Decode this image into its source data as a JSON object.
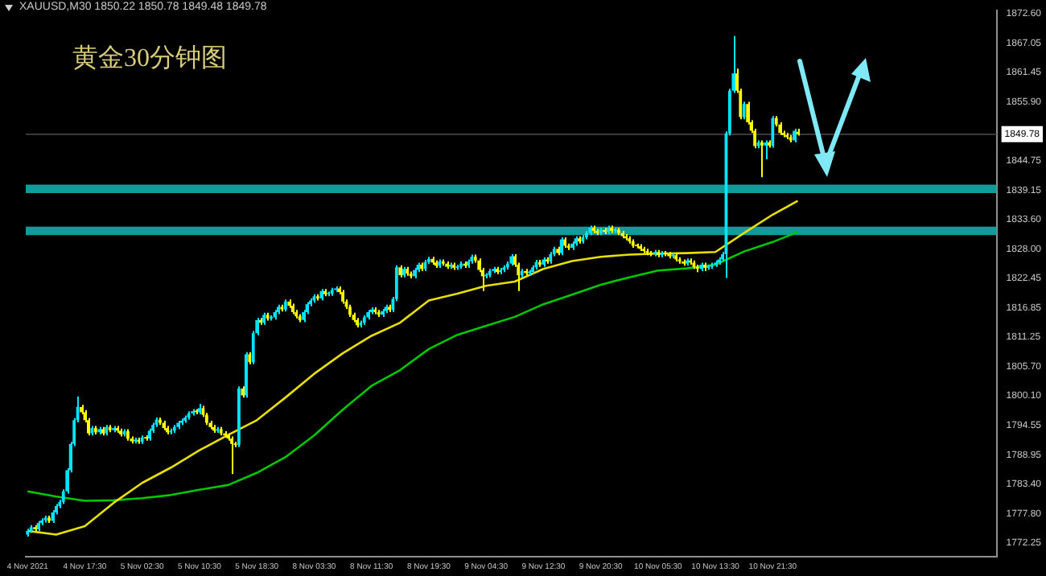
{
  "chart_data": {
    "type": "candlestick",
    "title": "黄金30分钟图",
    "annotations": [
      "XAUUSD,M30 1850.22 1850.78 1849.48 1849.78"
    ],
    "categories": [
      "4 Nov 2021",
      null,
      null,
      null,
      null,
      null,
      null,
      null,
      null,
      null,
      null,
      null,
      null,
      null,
      null,
      null,
      "4 Nov 17:30",
      null,
      null,
      null,
      null,
      null,
      null,
      null,
      null,
      null,
      null,
      null,
      null,
      null,
      null,
      null,
      "5 Nov 02:30",
      null,
      null,
      null,
      null,
      null,
      null,
      null,
      null,
      null,
      null,
      null,
      null,
      null,
      null,
      null,
      "5 Nov 10:30",
      null,
      null,
      null,
      null,
      null,
      null,
      null,
      null,
      null,
      null,
      null,
      null,
      null,
      null,
      null,
      "5 Nov 18:30",
      null,
      null,
      null,
      null,
      null,
      null,
      null,
      null,
      null,
      null,
      null,
      null,
      null,
      null,
      null,
      "8 Nov 03:30",
      null,
      null,
      null,
      null,
      null,
      null,
      null,
      null,
      null,
      null,
      null,
      null,
      null,
      null,
      null,
      "8 Nov 11:30",
      null,
      null,
      null,
      null,
      null,
      null,
      null,
      null,
      null,
      null,
      null,
      null,
      null,
      null,
      null,
      "8 Nov 19:30",
      null,
      null,
      null,
      null,
      null,
      null,
      null,
      null,
      null,
      null,
      null,
      null,
      null,
      null,
      null,
      "9 Nov 04:30",
      null,
      null,
      null,
      null,
      null,
      null,
      null,
      null,
      null,
      null,
      null,
      null,
      null,
      null,
      null,
      "9 Nov 12:30",
      null,
      null,
      null,
      null,
      null,
      null,
      null,
      null,
      null,
      null,
      null,
      null,
      null,
      null,
      null,
      "9 Nov 20:30",
      null,
      null,
      null,
      null,
      null,
      null,
      null,
      null,
      null,
      null,
      null,
      null,
      null,
      null,
      null,
      "10 Nov 05:30",
      null,
      null,
      null,
      null,
      null,
      null,
      null,
      null,
      null,
      null,
      null,
      null,
      null,
      null,
      null,
      "10 Nov 13:30",
      null,
      null,
      null,
      null,
      null,
      null,
      null,
      null,
      null,
      null,
      null,
      null,
      null,
      null,
      null,
      "10 Nov 21:30",
      null,
      null,
      null,
      null,
      null,
      null,
      null,
      null,
      null,
      null,
      null,
      null,
      null,
      null,
      null,
      null,
      null,
      null,
      null,
      null,
      null,
      null,
      null,
      null,
      null,
      null,
      null,
      null,
      null,
      null,
      null,
      null,
      null,
      null,
      null,
      null,
      null,
      null,
      null,
      null,
      null,
      null,
      null,
      null,
      null,
      null,
      null,
      null,
      null,
      null,
      null,
      null,
      null,
      null,
      null,
      null,
      null,
      null,
      null,
      null,
      null,
      null
    ],
    "ohlc": [
      [
        1773.8,
        1774.9,
        1773.4,
        1774.5
      ],
      [
        1774.5,
        1775.6,
        1774.1,
        1775.2
      ],
      [
        1775.2,
        1775.6,
        1774.4,
        1774.8
      ],
      [
        1774.8,
        1776.4,
        1774.4,
        1776.0
      ],
      [
        1776.0,
        1776.9,
        1775.6,
        1776.5
      ],
      [
        1776.5,
        1777.4,
        1776.1,
        1777.0
      ],
      [
        1777.0,
        1777.4,
        1776.0,
        1776.4
      ],
      [
        1776.4,
        1778.4,
        1776.0,
        1778.0
      ],
      [
        1778.0,
        1779.6,
        1777.6,
        1779.2
      ],
      [
        1779.2,
        1780.4,
        1778.8,
        1780.0
      ],
      [
        1780.0,
        1782.4,
        1779.6,
        1782.0
      ],
      [
        1782.0,
        1786.4,
        1781.6,
        1786.0
      ],
      [
        1786.0,
        1791.4,
        1785.6,
        1791.0
      ],
      [
        1791.0,
        1795.9,
        1790.6,
        1795.5
      ],
      [
        1795.5,
        1800.0,
        1795.1,
        1798.0
      ],
      [
        1798.0,
        1798.4,
        1796.6,
        1797.0
      ],
      [
        1797.0,
        1797.4,
        1795.1,
        1795.5
      ],
      [
        1795.5,
        1795.9,
        1792.6,
        1793.0
      ],
      [
        1793.0,
        1794.4,
        1792.6,
        1794.0
      ],
      [
        1794.0,
        1794.4,
        1792.8,
        1793.2
      ],
      [
        1793.2,
        1794.2,
        1792.8,
        1793.8
      ],
      [
        1793.8,
        1794.2,
        1792.6,
        1793.0
      ],
      [
        1793.0,
        1794.6,
        1792.6,
        1794.2
      ],
      [
        1794.2,
        1794.6,
        1793.2,
        1793.6
      ],
      [
        1793.6,
        1794.4,
        1793.2,
        1794.0
      ],
      [
        1794.0,
        1794.4,
        1793.1,
        1793.5
      ],
      [
        1793.5,
        1793.9,
        1792.4,
        1792.8
      ],
      [
        1792.8,
        1793.8,
        1792.4,
        1793.4
      ],
      [
        1793.4,
        1793.8,
        1791.6,
        1792.0
      ],
      [
        1792.0,
        1792.4,
        1791.1,
        1791.5
      ],
      [
        1791.5,
        1792.2,
        1791.1,
        1791.8
      ],
      [
        1791.8,
        1792.2,
        1791.0,
        1791.4
      ],
      [
        1791.4,
        1792.6,
        1791.0,
        1792.2
      ],
      [
        1792.2,
        1792.6,
        1791.6,
        1792.0
      ],
      [
        1792.0,
        1793.9,
        1791.6,
        1793.5
      ],
      [
        1793.5,
        1795.0,
        1793.1,
        1794.6
      ],
      [
        1794.6,
        1796.0,
        1794.2,
        1795.6
      ],
      [
        1795.6,
        1796.0,
        1794.6,
        1795.0
      ],
      [
        1795.0,
        1795.4,
        1793.6,
        1794.0
      ],
      [
        1794.0,
        1794.4,
        1792.8,
        1793.2
      ],
      [
        1793.2,
        1793.9,
        1792.8,
        1793.5
      ],
      [
        1793.5,
        1794.6,
        1793.1,
        1794.2
      ],
      [
        1794.2,
        1795.4,
        1793.8,
        1795.0
      ],
      [
        1795.0,
        1795.8,
        1794.6,
        1795.4
      ],
      [
        1795.4,
        1796.4,
        1795.0,
        1796.0
      ],
      [
        1796.0,
        1797.2,
        1795.6,
        1796.8
      ],
      [
        1796.8,
        1797.6,
        1796.4,
        1797.2
      ],
      [
        1797.2,
        1797.6,
        1796.6,
        1797.0
      ],
      [
        1797.0,
        1798.6,
        1796.6,
        1797.8
      ],
      [
        1797.8,
        1798.2,
        1796.1,
        1796.5
      ],
      [
        1796.5,
        1796.9,
        1794.6,
        1795.0
      ],
      [
        1795.0,
        1795.4,
        1793.8,
        1794.2
      ],
      [
        1794.2,
        1794.6,
        1793.1,
        1793.5
      ],
      [
        1793.5,
        1794.2,
        1793.1,
        1793.8
      ],
      [
        1793.8,
        1794.2,
        1792.6,
        1793.0
      ],
      [
        1793.0,
        1793.4,
        1792.2,
        1792.6
      ],
      [
        1792.6,
        1793.0,
        1791.6,
        1792.0
      ],
      [
        1792.0,
        1792.4,
        1785.3,
        1791.0
      ],
      [
        1791.0,
        1791.4,
        1790.4,
        1790.8
      ],
      [
        1790.8,
        1801.9,
        1790.4,
        1801.5
      ],
      [
        1801.5,
        1801.9,
        1799.8,
        1800.2
      ],
      [
        1800.2,
        1808.4,
        1799.8,
        1808.0
      ],
      [
        1808.0,
        1808.4,
        1806.1,
        1806.5
      ],
      [
        1806.5,
        1812.4,
        1806.1,
        1812.0
      ],
      [
        1812.0,
        1814.9,
        1811.6,
        1814.5
      ],
      [
        1814.5,
        1814.9,
        1813.6,
        1814.0
      ],
      [
        1814.0,
        1815.9,
        1813.6,
        1815.5
      ],
      [
        1815.5,
        1815.9,
        1814.4,
        1814.8
      ],
      [
        1814.8,
        1815.4,
        1814.4,
        1815.0
      ],
      [
        1815.0,
        1816.4,
        1814.6,
        1816.0
      ],
      [
        1816.0,
        1817.4,
        1815.6,
        1817.0
      ],
      [
        1817.0,
        1817.4,
        1816.1,
        1816.5
      ],
      [
        1816.5,
        1818.4,
        1816.1,
        1818.0
      ],
      [
        1818.0,
        1818.4,
        1816.8,
        1817.2
      ],
      [
        1817.2,
        1817.6,
        1815.6,
        1816.0
      ],
      [
        1816.0,
        1816.4,
        1814.8,
        1815.2
      ],
      [
        1815.2,
        1815.6,
        1814.1,
        1814.5
      ],
      [
        1814.5,
        1816.4,
        1814.1,
        1816.0
      ],
      [
        1816.0,
        1817.9,
        1815.6,
        1817.5
      ],
      [
        1817.5,
        1818.6,
        1817.1,
        1818.2
      ],
      [
        1818.2,
        1819.4,
        1817.8,
        1819.0
      ],
      [
        1819.0,
        1819.4,
        1818.2,
        1818.6
      ],
      [
        1818.6,
        1820.4,
        1818.2,
        1820.0
      ],
      [
        1820.0,
        1820.4,
        1819.0,
        1819.4
      ],
      [
        1819.4,
        1819.9,
        1819.0,
        1819.5
      ],
      [
        1819.5,
        1820.6,
        1819.1,
        1820.2
      ],
      [
        1820.2,
        1820.9,
        1819.8,
        1820.5
      ],
      [
        1820.5,
        1820.9,
        1819.4,
        1819.8
      ],
      [
        1819.8,
        1820.2,
        1817.6,
        1818.0
      ],
      [
        1818.0,
        1818.4,
        1816.6,
        1817.0
      ],
      [
        1817.0,
        1817.4,
        1815.1,
        1815.5
      ],
      [
        1815.5,
        1815.9,
        1814.1,
        1814.5
      ],
      [
        1814.5,
        1814.9,
        1813.1,
        1813.5
      ],
      [
        1813.5,
        1814.4,
        1813.1,
        1814.0
      ],
      [
        1814.0,
        1815.4,
        1813.6,
        1815.0
      ],
      [
        1815.0,
        1816.4,
        1814.6,
        1816.0
      ],
      [
        1816.0,
        1816.9,
        1815.6,
        1816.5
      ],
      [
        1816.5,
        1816.9,
        1815.6,
        1816.0
      ],
      [
        1816.0,
        1816.4,
        1815.1,
        1815.5
      ],
      [
        1815.5,
        1816.6,
        1815.1,
        1816.2
      ],
      [
        1816.2,
        1817.4,
        1815.8,
        1817.0
      ],
      [
        1817.0,
        1817.4,
        1816.0,
        1816.4
      ],
      [
        1816.4,
        1818.9,
        1816.0,
        1818.5
      ],
      [
        1818.5,
        1824.9,
        1818.1,
        1824.5
      ],
      [
        1824.5,
        1824.9,
        1822.6,
        1823.0
      ],
      [
        1823.0,
        1824.6,
        1822.6,
        1824.2
      ],
      [
        1824.2,
        1824.6,
        1822.9,
        1823.3
      ],
      [
        1823.3,
        1823.7,
        1822.4,
        1822.8
      ],
      [
        1822.8,
        1824.4,
        1822.4,
        1824.0
      ],
      [
        1824.0,
        1825.4,
        1823.6,
        1825.0
      ],
      [
        1825.0,
        1825.4,
        1823.8,
        1824.2
      ],
      [
        1824.2,
        1825.9,
        1823.8,
        1825.5
      ],
      [
        1825.5,
        1826.5,
        1825.1,
        1826.1
      ],
      [
        1826.1,
        1826.5,
        1825.0,
        1825.4
      ],
      [
        1825.4,
        1825.8,
        1824.4,
        1824.8
      ],
      [
        1824.8,
        1826.0,
        1824.4,
        1825.6
      ],
      [
        1825.6,
        1826.0,
        1824.8,
        1825.2
      ],
      [
        1825.2,
        1825.6,
        1824.2,
        1824.6
      ],
      [
        1824.6,
        1825.4,
        1824.2,
        1825.0
      ],
      [
        1825.0,
        1825.4,
        1824.0,
        1824.4
      ],
      [
        1824.4,
        1825.0,
        1824.0,
        1824.6
      ],
      [
        1824.6,
        1825.6,
        1824.2,
        1825.2
      ],
      [
        1825.2,
        1825.6,
        1824.4,
        1824.8
      ],
      [
        1824.8,
        1826.0,
        1824.4,
        1825.6
      ],
      [
        1825.6,
        1826.9,
        1825.2,
        1826.5
      ],
      [
        1826.5,
        1826.9,
        1825.4,
        1825.8
      ],
      [
        1825.8,
        1826.2,
        1823.6,
        1824.0
      ],
      [
        1824.0,
        1824.4,
        1820.0,
        1822.8
      ],
      [
        1822.8,
        1823.4,
        1822.4,
        1823.0
      ],
      [
        1823.0,
        1824.2,
        1822.6,
        1823.8
      ],
      [
        1823.8,
        1824.6,
        1823.4,
        1824.2
      ],
      [
        1824.2,
        1824.6,
        1823.2,
        1823.6
      ],
      [
        1823.6,
        1824.4,
        1823.2,
        1824.0
      ],
      [
        1824.0,
        1824.9,
        1823.6,
        1824.5
      ],
      [
        1824.5,
        1825.6,
        1824.1,
        1825.2
      ],
      [
        1825.2,
        1827.0,
        1824.8,
        1826.6
      ],
      [
        1826.6,
        1827.0,
        1824.6,
        1825.0
      ],
      [
        1825.0,
        1825.4,
        1820.0,
        1823.0
      ],
      [
        1823.0,
        1824.2,
        1822.6,
        1823.8
      ],
      [
        1823.8,
        1824.2,
        1823.0,
        1823.4
      ],
      [
        1823.4,
        1824.0,
        1823.0,
        1823.6
      ],
      [
        1823.6,
        1824.9,
        1823.2,
        1824.5
      ],
      [
        1824.5,
        1825.9,
        1824.1,
        1825.5
      ],
      [
        1825.5,
        1825.9,
        1824.6,
        1825.0
      ],
      [
        1825.0,
        1826.4,
        1824.6,
        1826.0
      ],
      [
        1826.0,
        1826.4,
        1825.2,
        1825.6
      ],
      [
        1825.6,
        1827.4,
        1825.2,
        1827.0
      ],
      [
        1827.0,
        1828.4,
        1826.6,
        1828.0
      ],
      [
        1828.0,
        1828.4,
        1826.8,
        1827.2
      ],
      [
        1827.2,
        1830.2,
        1826.8,
        1829.8
      ],
      [
        1829.8,
        1830.2,
        1828.2,
        1828.6
      ],
      [
        1828.6,
        1829.0,
        1827.8,
        1828.2
      ],
      [
        1828.2,
        1829.4,
        1827.8,
        1829.0
      ],
      [
        1829.0,
        1830.4,
        1828.6,
        1830.0
      ],
      [
        1830.0,
        1830.4,
        1829.0,
        1829.4
      ],
      [
        1829.4,
        1830.6,
        1829.0,
        1830.2
      ],
      [
        1830.2,
        1831.4,
        1829.8,
        1831.0
      ],
      [
        1831.0,
        1832.4,
        1830.6,
        1832.0
      ],
      [
        1832.0,
        1832.4,
        1831.0,
        1831.4
      ],
      [
        1831.4,
        1831.8,
        1830.6,
        1831.0
      ],
      [
        1831.0,
        1832.0,
        1830.6,
        1831.6
      ],
      [
        1831.6,
        1832.0,
        1830.8,
        1831.2
      ],
      [
        1831.2,
        1832.4,
        1830.8,
        1832.0
      ],
      [
        1832.0,
        1832.4,
        1831.0,
        1831.4
      ],
      [
        1831.4,
        1832.0,
        1831.0,
        1831.6
      ],
      [
        1831.6,
        1832.0,
        1830.6,
        1831.0
      ],
      [
        1831.0,
        1831.4,
        1830.0,
        1830.4
      ],
      [
        1830.4,
        1830.8,
        1829.6,
        1830.0
      ],
      [
        1830.0,
        1830.4,
        1829.0,
        1829.4
      ],
      [
        1829.4,
        1829.8,
        1828.2,
        1828.6
      ],
      [
        1828.6,
        1829.0,
        1828.1,
        1828.5
      ],
      [
        1828.5,
        1828.9,
        1827.6,
        1828.0
      ],
      [
        1828.0,
        1828.4,
        1827.2,
        1827.6
      ],
      [
        1827.6,
        1828.0,
        1826.8,
        1827.2
      ],
      [
        1827.2,
        1827.6,
        1826.6,
        1827.0
      ],
      [
        1827.0,
        1827.8,
        1826.6,
        1827.4
      ],
      [
        1827.4,
        1827.8,
        1826.4,
        1826.8
      ],
      [
        1826.8,
        1827.6,
        1826.4,
        1827.2
      ],
      [
        1827.2,
        1827.6,
        1826.6,
        1827.0
      ],
      [
        1827.0,
        1827.4,
        1826.2,
        1826.6
      ],
      [
        1826.6,
        1827.2,
        1826.2,
        1826.8
      ],
      [
        1826.8,
        1827.2,
        1825.6,
        1826.0
      ],
      [
        1826.0,
        1826.4,
        1825.2,
        1825.6
      ],
      [
        1825.6,
        1826.0,
        1824.8,
        1825.2
      ],
      [
        1825.2,
        1826.2,
        1824.8,
        1825.8
      ],
      [
        1825.8,
        1826.2,
        1825.0,
        1825.4
      ],
      [
        1825.4,
        1825.8,
        1824.2,
        1824.6
      ],
      [
        1824.6,
        1825.0,
        1823.6,
        1824.2
      ],
      [
        1824.2,
        1825.4,
        1823.8,
        1825.0
      ],
      [
        1825.0,
        1825.4,
        1823.8,
        1824.4
      ],
      [
        1824.4,
        1825.0,
        1824.0,
        1824.6
      ],
      [
        1824.6,
        1825.4,
        1824.2,
        1825.0
      ],
      [
        1825.0,
        1825.8,
        1824.6,
        1825.4
      ],
      [
        1825.4,
        1826.4,
        1825.0,
        1826.0
      ],
      [
        1826.0,
        1827.4,
        1825.6,
        1827.0
      ],
      [
        1827.0,
        1850.3,
        1822.5,
        1849.9
      ],
      [
        1849.9,
        1858.4,
        1849.5,
        1858.0
      ],
      [
        1858.0,
        1868.4,
        1857.6,
        1861.3
      ],
      [
        1861.3,
        1862.2,
        1857.6,
        1858.0
      ],
      [
        1858.0,
        1858.4,
        1852.6,
        1853.0
      ],
      [
        1853.0,
        1855.9,
        1852.6,
        1855.5
      ],
      [
        1855.5,
        1855.9,
        1851.6,
        1852.0
      ],
      [
        1852.0,
        1852.4,
        1850.0,
        1850.4
      ],
      [
        1850.4,
        1850.8,
        1847.1,
        1847.5
      ],
      [
        1847.5,
        1848.6,
        1847.1,
        1848.2
      ],
      [
        1848.2,
        1848.6,
        1841.6,
        1847.6
      ],
      [
        1847.6,
        1848.6,
        1845.0,
        1848.2
      ],
      [
        1848.2,
        1848.6,
        1847.2,
        1847.6
      ],
      [
        1847.6,
        1853.2,
        1847.2,
        1852.8
      ],
      [
        1852.8,
        1853.2,
        1851.2,
        1851.6
      ],
      [
        1851.6,
        1852.0,
        1849.6,
        1850.0
      ],
      [
        1850.0,
        1850.4,
        1849.2,
        1849.6
      ],
      [
        1849.6,
        1850.0,
        1848.8,
        1849.2
      ],
      [
        1849.2,
        1849.6,
        1848.2,
        1848.6
      ],
      [
        1848.6,
        1850.8,
        1848.2,
        1850.4
      ],
      [
        1850.22,
        1850.78,
        1849.48,
        1849.78
      ],
      null,
      null,
      null,
      null,
      null,
      null,
      null,
      null,
      null,
      null,
      null,
      null,
      null,
      null,
      null,
      null,
      null,
      null,
      null,
      null,
      null,
      null,
      null,
      null,
      null,
      null,
      null,
      null,
      null,
      null,
      null,
      null,
      null,
      null,
      null,
      null,
      null,
      null,
      null,
      null,
      null,
      null,
      null,
      null,
      null,
      null,
      null,
      null,
      null,
      null,
      null,
      null,
      null,
      null,
      null
    ],
    "colors": [
      "#00e5ff",
      "#00e5ff",
      "#ffff00",
      "#00e5ff",
      "#00e5ff",
      "#00e5ff",
      "#ffff00",
      "#00e5ff",
      "#00e5ff",
      "#00e5ff",
      "#00e5ff",
      "#00e5ff",
      "#00e5ff",
      "#00e5ff",
      "#00e5ff",
      "#ffff00",
      "#ffff00",
      "#ffff00",
      "#00e5ff",
      "#ffff00",
      "#00e5ff",
      "#ffff00",
      "#00e5ff",
      "#ffff00",
      "#00e5ff",
      "#ffff00",
      "#ffff00",
      "#00e5ff",
      "#ffff00",
      "#ffff00",
      "#00e5ff",
      "#ffff00",
      "#00e5ff",
      "#ffff00",
      "#00e5ff",
      "#00e5ff",
      "#00e5ff",
      "#ffff00",
      "#ffff00",
      "#ffff00",
      "#00e5ff",
      "#00e5ff",
      "#00e5ff",
      "#00e5ff",
      "#00e5ff",
      "#00e5ff",
      "#00e5ff",
      "#ffff00",
      "#00e5ff",
      "#ffff00",
      "#ffff00",
      "#ffff00",
      "#ffff00",
      "#00e5ff",
      "#ffff00",
      "#ffff00",
      "#ffff00",
      "#ffff00",
      "#ffff00",
      "#00e5ff",
      "#ffff00",
      "#00e5ff",
      "#ffff00",
      "#00e5ff",
      "#00e5ff",
      "#ffff00",
      "#00e5ff",
      "#ffff00",
      "#00e5ff",
      "#00e5ff",
      "#00e5ff",
      "#ffff00",
      "#00e5ff",
      "#ffff00",
      "#ffff00",
      "#ffff00",
      "#ffff00",
      "#00e5ff",
      "#00e5ff",
      "#00e5ff",
      "#00e5ff",
      "#ffff00",
      "#00e5ff",
      "#ffff00",
      "#00e5ff",
      "#00e5ff",
      "#00e5ff",
      "#ffff00",
      "#ffff00",
      "#ffff00",
      "#ffff00",
      "#ffff00",
      "#ffff00",
      "#00e5ff",
      "#00e5ff",
      "#00e5ff",
      "#00e5ff",
      "#ffff00",
      "#ffff00",
      "#00e5ff",
      "#00e5ff",
      "#ffff00",
      "#00e5ff",
      "#00e5ff",
      "#ffff00",
      "#00e5ff",
      "#ffff00",
      "#ffff00",
      "#00e5ff",
      "#00e5ff",
      "#ffff00",
      "#00e5ff",
      "#00e5ff",
      "#ffff00",
      "#ffff00",
      "#00e5ff",
      "#ffff00",
      "#ffff00",
      "#00e5ff",
      "#ffff00",
      "#00e5ff",
      "#00e5ff",
      "#ffff00",
      "#00e5ff",
      "#00e5ff",
      "#ffff00",
      "#ffff00",
      "#ffff00",
      "#00e5ff",
      "#00e5ff",
      "#00e5ff",
      "#ffff00",
      "#00e5ff",
      "#00e5ff",
      "#00e5ff",
      "#00e5ff",
      "#ffff00",
      "#ffff00",
      "#00e5ff",
      "#ffff00",
      "#00e5ff",
      "#00e5ff",
      "#00e5ff",
      "#ffff00",
      "#00e5ff",
      "#ffff00",
      "#00e5ff",
      "#00e5ff",
      "#ffff00",
      "#00e5ff",
      "#ffff00",
      "#ffff00",
      "#00e5ff",
      "#00e5ff",
      "#ffff00",
      "#00e5ff",
      "#00e5ff",
      "#00e5ff",
      "#ffff00",
      "#ffff00",
      "#00e5ff",
      "#ffff00",
      "#00e5ff",
      "#ffff00",
      "#00e5ff",
      "#ffff00",
      "#ffff00",
      "#ffff00",
      "#ffff00",
      "#ffff00",
      "#ffff00",
      "#ffff00",
      "#ffff00",
      "#ffff00",
      "#ffff00",
      "#00e5ff",
      "#ffff00",
      "#00e5ff",
      "#ffff00",
      "#ffff00",
      "#00e5ff",
      "#ffff00",
      "#ffff00",
      "#ffff00",
      "#00e5ff",
      "#ffff00",
      "#ffff00",
      "#ffff00",
      "#00e5ff",
      "#ffff00",
      "#00e5ff",
      "#00e5ff",
      "#00e5ff",
      "#00e5ff",
      "#00e5ff",
      "#00e5ff",
      "#00e5ff",
      "#00e5ff",
      "#ffff00",
      "#ffff00",
      "#00e5ff",
      "#ffff00",
      "#ffff00",
      "#ffff00",
      "#00e5ff",
      "#ffff00",
      "#00e5ff",
      "#ffff00",
      "#00e5ff",
      "#ffff00",
      "#ffff00",
      "#ffff00",
      "#ffff00",
      "#ffff00",
      "#00e5ff",
      "#ffff00",
      null,
      null,
      null,
      null,
      null,
      null,
      null,
      null,
      null,
      null,
      null,
      null,
      null,
      null,
      null,
      null,
      null,
      null,
      null,
      null,
      null,
      null,
      null,
      null,
      null,
      null,
      null,
      null,
      null,
      null,
      null,
      null,
      null,
      null,
      null,
      null,
      null,
      null,
      null,
      null,
      null,
      null,
      null,
      null,
      null,
      null,
      null,
      null,
      null,
      null,
      null,
      null,
      null,
      null,
      null
    ],
    "series": [
      {
        "type": "line",
        "color": "#e8e000",
        "values": [
          1774.5,
          null,
          null,
          null,
          null,
          null,
          null,
          null,
          1773.8,
          null,
          null,
          null,
          null,
          null,
          null,
          null,
          1775.4,
          null,
          null,
          null,
          null,
          null,
          null,
          null,
          1779.8,
          null,
          null,
          null,
          null,
          null,
          null,
          null,
          1783.6,
          null,
          null,
          null,
          null,
          null,
          null,
          null,
          1786.5,
          null,
          null,
          null,
          null,
          null,
          null,
          null,
          1789.8,
          null,
          null,
          null,
          null,
          null,
          null,
          null,
          1792.7,
          null,
          null,
          null,
          null,
          null,
          null,
          null,
          1795.5,
          null,
          null,
          null,
          null,
          null,
          null,
          null,
          1799.8,
          null,
          null,
          null,
          null,
          null,
          null,
          null,
          1804.3,
          null,
          null,
          null,
          null,
          null,
          null,
          null,
          1808.2,
          null,
          null,
          null,
          null,
          null,
          null,
          null,
          1811.5,
          null,
          null,
          null,
          null,
          null,
          null,
          null,
          1814.0,
          null,
          null,
          null,
          null,
          null,
          null,
          null,
          1818.2,
          null,
          null,
          null,
          null,
          null,
          null,
          null,
          1819.5,
          null,
          null,
          null,
          null,
          null,
          null,
          null,
          1821.0,
          null,
          null,
          null,
          null,
          null,
          null,
          null,
          1821.8,
          null,
          null,
          null,
          null,
          null,
          null,
          null,
          1824.2,
          null,
          null,
          null,
          null,
          null,
          null,
          null,
          1825.7,
          null,
          null,
          null,
          null,
          null,
          null,
          null,
          1826.5,
          null,
          null,
          null,
          null,
          null,
          null,
          null,
          1826.9,
          null,
          null,
          null,
          null,
          null,
          null,
          null,
          1827.1,
          null,
          null,
          null,
          null,
          null,
          null,
          null,
          1827.2,
          null,
          null,
          null,
          null,
          null,
          null,
          null,
          1827.4,
          null,
          null,
          null,
          null,
          null,
          null,
          null,
          1831.0,
          null,
          null,
          null,
          null,
          null,
          null,
          null,
          1834.5,
          null,
          null,
          null,
          null,
          null,
          null,
          1837.1,
          null,
          null,
          null,
          null,
          null,
          null,
          null,
          null,
          null,
          null,
          null,
          null,
          null,
          null,
          null,
          null,
          null,
          null,
          null,
          null,
          null,
          null,
          null,
          null,
          null,
          null,
          null,
          null,
          null,
          null,
          null,
          null,
          null,
          null,
          null,
          null,
          null,
          null,
          null,
          null,
          null,
          null,
          null,
          null,
          null,
          null,
          null,
          null,
          null,
          null,
          null,
          null,
          null,
          null,
          null
        ]
      },
      {
        "type": "line",
        "color": "#00c800",
        "values": [
          1782.0,
          null,
          null,
          null,
          null,
          null,
          null,
          null,
          1781.0,
          null,
          null,
          null,
          null,
          null,
          null,
          null,
          1780.2,
          null,
          null,
          null,
          null,
          null,
          null,
          null,
          1780.3,
          null,
          null,
          null,
          null,
          null,
          null,
          null,
          1780.7,
          null,
          null,
          null,
          null,
          null,
          null,
          null,
          1781.3,
          null,
          null,
          null,
          null,
          null,
          null,
          null,
          1782.3,
          null,
          null,
          null,
          null,
          null,
          null,
          null,
          1783.2,
          null,
          null,
          null,
          null,
          null,
          null,
          null,
          1785.5,
          null,
          null,
          null,
          null,
          null,
          null,
          null,
          1788.5,
          null,
          null,
          null,
          null,
          null,
          null,
          null,
          1792.6,
          null,
          null,
          null,
          null,
          null,
          null,
          null,
          1797.5,
          null,
          null,
          null,
          null,
          null,
          null,
          null,
          1802.0,
          null,
          null,
          null,
          null,
          null,
          null,
          null,
          1805.0,
          null,
          null,
          null,
          null,
          null,
          null,
          null,
          1809.0,
          null,
          null,
          null,
          null,
          null,
          null,
          null,
          1811.7,
          null,
          null,
          null,
          null,
          null,
          null,
          null,
          1813.4,
          null,
          null,
          null,
          null,
          null,
          null,
          null,
          1815.1,
          null,
          null,
          null,
          null,
          null,
          null,
          null,
          1817.5,
          null,
          null,
          null,
          null,
          null,
          null,
          null,
          1819.3,
          null,
          null,
          null,
          null,
          null,
          null,
          null,
          1821.2,
          null,
          null,
          null,
          null,
          null,
          null,
          null,
          1822.6,
          null,
          null,
          null,
          null,
          null,
          null,
          null,
          1823.9,
          null,
          null,
          null,
          null,
          null,
          null,
          null,
          1824.3,
          null,
          null,
          null,
          null,
          null,
          null,
          null,
          1825.0,
          null,
          null,
          null,
          null,
          null,
          null,
          null,
          1827.5,
          null,
          null,
          null,
          null,
          null,
          null,
          null,
          1829.3,
          null,
          null,
          null,
          null,
          null,
          null,
          1831.2,
          null,
          null,
          null,
          null,
          null,
          null,
          null,
          null,
          null,
          null,
          null,
          null,
          null,
          null,
          null,
          null,
          null,
          null,
          null,
          null,
          null,
          null,
          null,
          null,
          null,
          null,
          null,
          null,
          null,
          null,
          null,
          null,
          null,
          null,
          null,
          null,
          null,
          null,
          null,
          null,
          null,
          null,
          null,
          null,
          null,
          null,
          null,
          null,
          null,
          null,
          null,
          null,
          null,
          null,
          null
        ]
      }
    ],
    "ylim": [
      1769.6,
      1873.2
    ],
    "yticks": [
      {
        "value": 1772.25,
        "label": "1772.25"
      },
      {
        "value": 1777.8,
        "label": "1777.80"
      },
      {
        "value": 1783.4,
        "label": "1783.40"
      },
      {
        "value": 1788.95,
        "label": "1788.95"
      },
      {
        "value": 1794.55,
        "label": "1794.55"
      },
      {
        "value": 1800.1,
        "label": "1800.10"
      },
      {
        "value": 1805.7,
        "label": "1805.70"
      },
      {
        "value": 1811.25,
        "label": "1811.25"
      },
      {
        "value": 1816.85,
        "label": "1816.85"
      },
      {
        "value": 1822.45,
        "label": "1822.45"
      },
      {
        "value": 1828.0,
        "label": "1828.00"
      },
      {
        "value": 1833.6,
        "label": "1833.60"
      },
      {
        "value": 1839.15,
        "label": "1839.15"
      },
      {
        "value": 1844.75,
        "label": "1844.75"
      },
      {
        "value": 1855.9,
        "label": "1855.90"
      },
      {
        "value": 1861.45,
        "label": "1861.45"
      },
      {
        "value": 1867.05,
        "label": "1867.05"
      },
      {
        "value": 1872.6,
        "label": "1872.60"
      }
    ],
    "ref_lines": [
      {
        "axis": "y",
        "value": 1849.78,
        "label": "1849.78",
        "color": "#3a3a3a"
      }
    ],
    "bands": [
      {
        "axis": "y",
        "from": 1838.6,
        "to": 1840.2,
        "color": "#139a9a"
      },
      {
        "axis": "y",
        "from": 1830.6,
        "to": 1832.2,
        "color": "#139a9a"
      }
    ],
    "grid": false,
    "legend": false
  }
}
